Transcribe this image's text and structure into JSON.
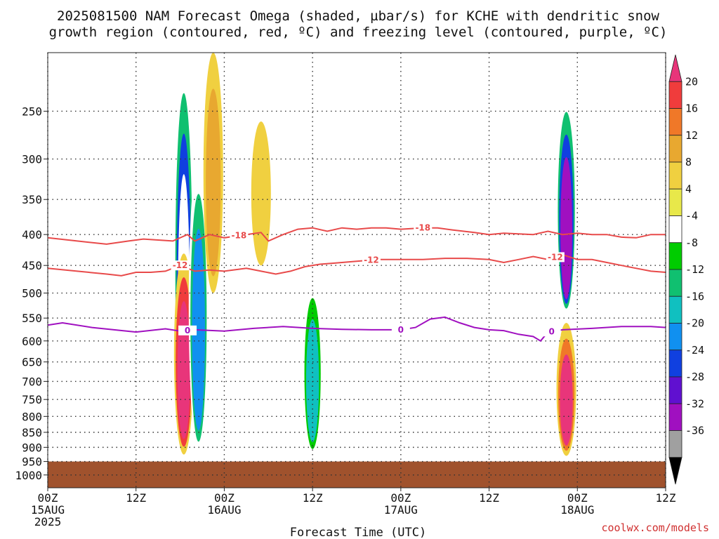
{
  "title": {
    "line1": "2025081500 NAM Forecast Omega (shaded, µbar/s) for KCHE with dendritic snow",
    "line2": "growth region (contoured, red, ºC) and freezing level (contoured, purple, ºC)"
  },
  "xlabel": "Forecast Time (UTC)",
  "credit": "coolwx.com/models",
  "chart_data": {
    "type": "heatmap",
    "title": "2025081500 NAM Forecast Omega (shaded, µbar/s) for KCHE with dendritic snow growth region (contoured, red, ºC) and freezing level (contoured, purple, ºC)",
    "xlabel": "Forecast Time (UTC)",
    "ylabel": "",
    "x_range_hours": [
      0,
      84
    ],
    "y_range_hpa": [
      1050,
      200
    ],
    "y_scale": "log-pressure",
    "grid": true,
    "y_ticks": [
      "250",
      "300",
      "350",
      "400",
      "450",
      "500",
      "550",
      "600",
      "650",
      "700",
      "750",
      "800",
      "850",
      "900",
      "950",
      "1000"
    ],
    "x_ticks": [
      {
        "label": "00Z",
        "sub": "15AUG",
        "sub2": "2025",
        "hour": 0
      },
      {
        "label": "12Z",
        "sub": "",
        "sub2": "",
        "hour": 12
      },
      {
        "label": "00Z",
        "sub": "16AUG",
        "sub2": "",
        "hour": 24
      },
      {
        "label": "12Z",
        "sub": "",
        "sub2": "",
        "hour": 36
      },
      {
        "label": "00Z",
        "sub": "17AUG",
        "sub2": "",
        "hour": 48
      },
      {
        "label": "12Z",
        "sub": "",
        "sub2": "",
        "hour": 60
      },
      {
        "label": "00Z",
        "sub": "18AUG",
        "sub2": "",
        "hour": 72
      },
      {
        "label": "12Z",
        "sub": "",
        "sub2": "",
        "hour": 84
      }
    ],
    "colorbar": {
      "labels": [
        "20",
        "16",
        "12",
        "8",
        "4",
        "-4",
        "-8",
        "-12",
        "-16",
        "-20",
        "-24",
        "-28",
        "-32",
        "-36"
      ],
      "colors": [
        "#e8357a",
        "#f03c3c",
        "#f07828",
        "#e8a830",
        "#f0d040",
        "#e8e84a",
        "#ffffff",
        "#00cc00",
        "#10c070",
        "#10c0c0",
        "#1090f0",
        "#1040e0",
        "#6010d0",
        "#a010c0",
        "#a0a0a0",
        "#000000"
      ]
    },
    "ground_level_hpa": 950,
    "ground_color": "#a0522d",
    "contours": [
      {
        "label": "-18",
        "color": "#e84a4a",
        "label_hours": [
          26,
          51
        ],
        "points": [
          [
            0,
            405
          ],
          [
            4,
            410
          ],
          [
            8,
            415
          ],
          [
            11,
            410
          ],
          [
            13,
            407
          ],
          [
            17,
            410
          ],
          [
            19,
            400
          ],
          [
            20,
            410
          ],
          [
            22,
            400
          ],
          [
            24,
            405
          ],
          [
            27,
            400
          ],
          [
            29,
            397
          ],
          [
            30,
            410
          ],
          [
            32,
            400
          ],
          [
            34,
            392
          ],
          [
            36,
            390
          ],
          [
            38,
            395
          ],
          [
            40,
            390
          ],
          [
            42,
            392
          ],
          [
            44,
            390
          ],
          [
            46,
            390
          ],
          [
            48,
            392
          ],
          [
            51,
            390
          ],
          [
            53,
            390
          ],
          [
            55,
            393
          ],
          [
            58,
            397
          ],
          [
            60,
            400
          ],
          [
            62,
            398
          ],
          [
            66,
            400
          ],
          [
            68,
            395
          ],
          [
            70,
            400
          ],
          [
            72,
            398
          ],
          [
            74,
            400
          ],
          [
            76,
            400
          ],
          [
            78,
            404
          ],
          [
            80,
            405
          ],
          [
            82,
            400
          ],
          [
            84,
            400
          ]
        ]
      },
      {
        "label": "-12",
        "color": "#e84a4a",
        "label_hours": [
          18,
          44,
          69
        ],
        "points": [
          [
            0,
            455
          ],
          [
            4,
            460
          ],
          [
            8,
            465
          ],
          [
            10,
            468
          ],
          [
            12,
            462
          ],
          [
            14,
            462
          ],
          [
            16,
            460
          ],
          [
            18,
            450
          ],
          [
            20,
            460
          ],
          [
            22,
            458
          ],
          [
            24,
            460
          ],
          [
            27,
            455
          ],
          [
            29,
            460
          ],
          [
            31,
            465
          ],
          [
            33,
            460
          ],
          [
            35,
            452
          ],
          [
            37,
            448
          ],
          [
            39,
            446
          ],
          [
            42,
            443
          ],
          [
            45,
            440
          ],
          [
            48,
            440
          ],
          [
            51,
            440
          ],
          [
            54,
            438
          ],
          [
            57,
            438
          ],
          [
            60,
            440
          ],
          [
            62,
            445
          ],
          [
            64,
            440
          ],
          [
            66,
            435
          ],
          [
            68,
            440
          ],
          [
            70,
            432
          ],
          [
            72,
            440
          ],
          [
            74,
            440
          ],
          [
            76,
            445
          ],
          [
            78,
            450
          ],
          [
            80,
            455
          ],
          [
            82,
            460
          ],
          [
            84,
            462
          ]
        ]
      },
      {
        "label": "0",
        "color": "#a010c0",
        "label_hours": [
          19,
          48,
          68.5
        ],
        "points": [
          [
            0,
            565
          ],
          [
            2,
            560
          ],
          [
            6,
            570
          ],
          [
            12,
            580
          ],
          [
            16,
            573
          ],
          [
            18,
            578
          ],
          [
            20,
            575
          ],
          [
            24,
            578
          ],
          [
            28,
            572
          ],
          [
            32,
            568
          ],
          [
            36,
            572
          ],
          [
            40,
            574
          ],
          [
            44,
            575
          ],
          [
            48,
            575
          ],
          [
            50,
            570
          ],
          [
            52,
            552
          ],
          [
            54,
            548
          ],
          [
            56,
            560
          ],
          [
            58,
            570
          ],
          [
            60,
            575
          ],
          [
            62,
            577
          ],
          [
            64,
            585
          ],
          [
            66,
            590
          ],
          [
            67,
            600
          ],
          [
            68,
            580
          ],
          [
            70,
            575
          ],
          [
            74,
            572
          ],
          [
            78,
            568
          ],
          [
            82,
            568
          ],
          [
            84,
            570
          ]
        ]
      }
    ],
    "shaded_features": [
      {
        "hour": 18.5,
        "p_top": 200,
        "p_bot": 920,
        "values": [
          -8,
          -16,
          -28,
          -8
        ],
        "note": "upper negative omega column"
      },
      {
        "hour": 18.5,
        "p_top": 430,
        "p_bot": 925,
        "values": [
          4,
          16,
          20
        ],
        "note": "lower positive omega core"
      },
      {
        "hour": 20.5,
        "p_top": 300,
        "p_bot": 920,
        "values": [
          -8,
          -16,
          -24
        ],
        "note": "negative column"
      },
      {
        "hour": 22.5,
        "p_top": 200,
        "p_bot": 500,
        "values": [
          4,
          8
        ],
        "note": "positive streak"
      },
      {
        "hour": 29,
        "p_top": 260,
        "p_bot": 450,
        "values": [
          4
        ],
        "note": "positive streak"
      },
      {
        "hour": 36,
        "p_top": 470,
        "p_bot": 930,
        "values": [
          -8,
          -12,
          -20
        ],
        "note": "negative column"
      },
      {
        "hour": 70.5,
        "p_top": 230,
        "p_bot": 540,
        "values": [
          -8,
          -16,
          -28,
          -36
        ],
        "note": "strong negative column"
      },
      {
        "hour": 70.5,
        "p_top": 560,
        "p_bot": 930,
        "values": [
          4,
          12,
          20
        ],
        "note": "positive core"
      }
    ]
  }
}
